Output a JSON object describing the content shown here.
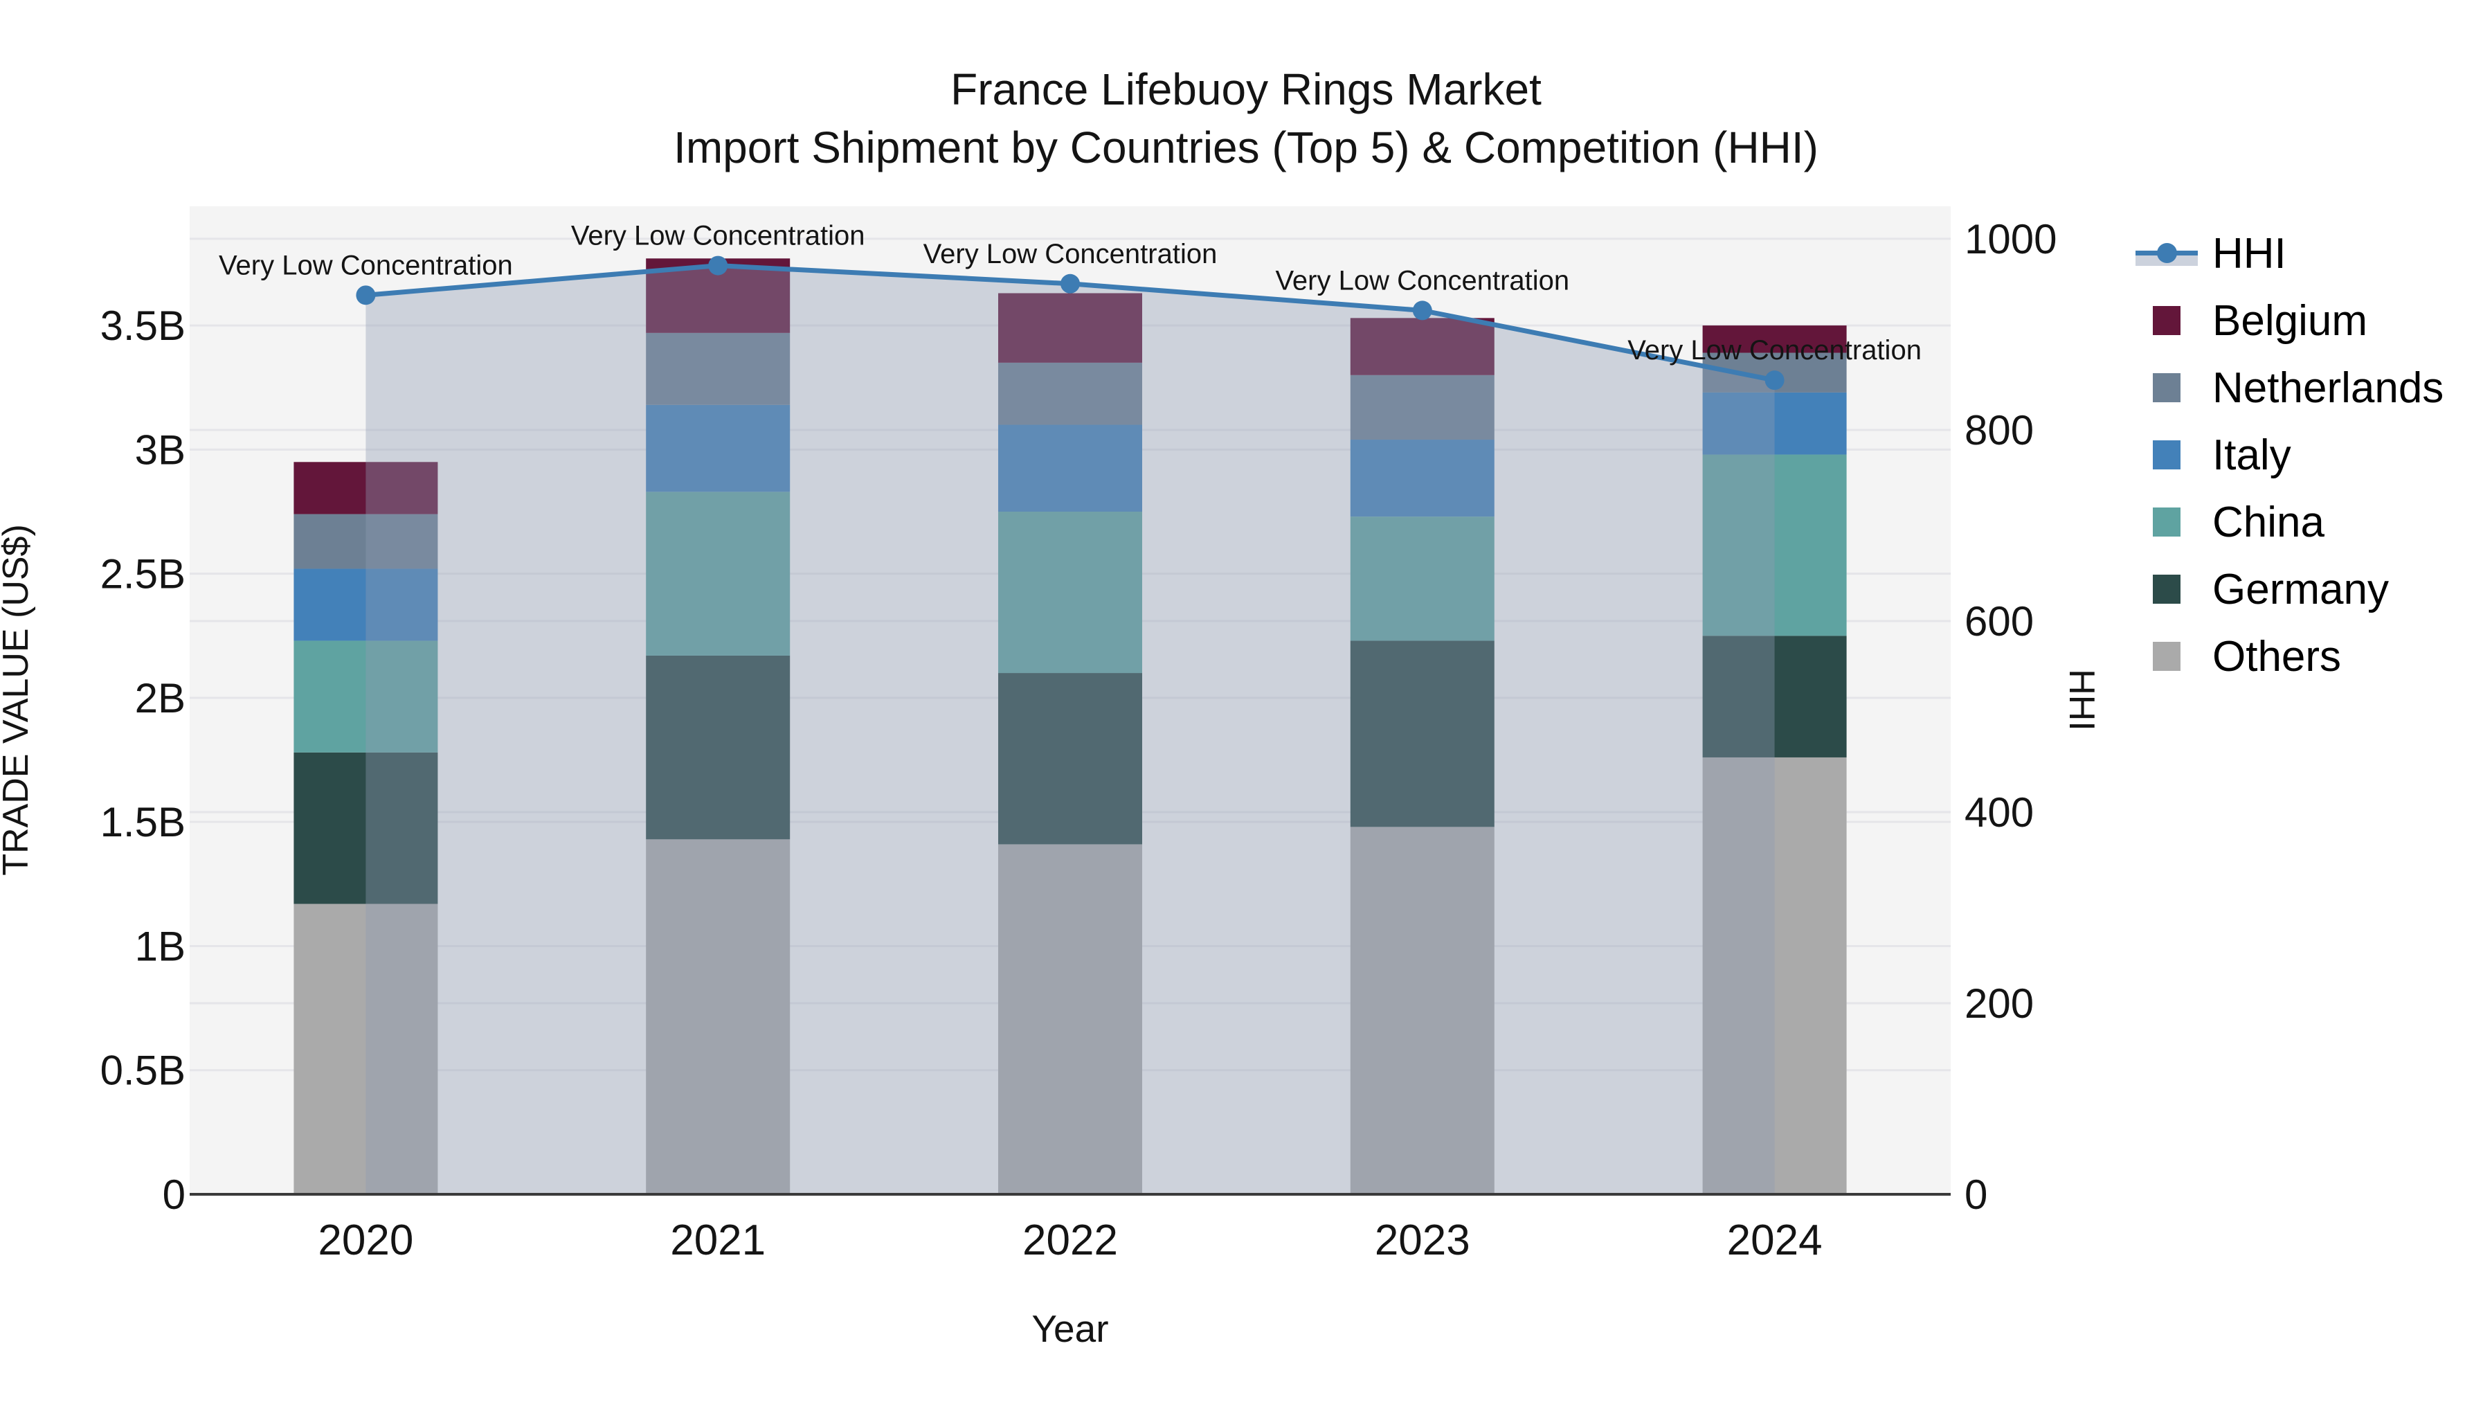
{
  "title": {
    "line1": "France Lifebuoy Rings Market",
    "line2": "Import Shipment by Countries (Top 5) & Competition (HHI)"
  },
  "axes": {
    "x": {
      "title": "Year",
      "categories": [
        "2020",
        "2021",
        "2022",
        "2023",
        "2024"
      ]
    },
    "left": {
      "title": "TRADE VALUE (US$)",
      "ticks": [
        {
          "label": "0",
          "value": 0
        },
        {
          "label": "0.5B",
          "value": 0.5
        },
        {
          "label": "1B",
          "value": 1
        },
        {
          "label": "1.5B",
          "value": 1.5
        },
        {
          "label": "2B",
          "value": 2
        },
        {
          "label": "2.5B",
          "value": 2.5
        },
        {
          "label": "3B",
          "value": 3
        },
        {
          "label": "3.5B",
          "value": 3.5
        }
      ]
    },
    "right": {
      "title": "HHI",
      "ticks": [
        {
          "label": "0",
          "value": 0
        },
        {
          "label": "200",
          "value": 200
        },
        {
          "label": "400",
          "value": 400
        },
        {
          "label": "600",
          "value": 600
        },
        {
          "label": "800",
          "value": 800
        },
        {
          "label": "1000",
          "value": 1000
        }
      ]
    }
  },
  "legend": {
    "items": [
      {
        "id": "hhi",
        "label": "HHI",
        "type": "line",
        "color": "#3d7cb3"
      },
      {
        "id": "belgium",
        "label": "Belgium",
        "type": "swatch",
        "color": "#63163a"
      },
      {
        "id": "netherlands",
        "label": "Netherlands",
        "type": "swatch",
        "color": "#6d8094"
      },
      {
        "id": "italy",
        "label": "Italy",
        "type": "swatch",
        "color": "#4381b9"
      },
      {
        "id": "china",
        "label": "China",
        "type": "swatch",
        "color": "#5fa3a1"
      },
      {
        "id": "germany",
        "label": "Germany",
        "type": "swatch",
        "color": "#2c4b49"
      },
      {
        "id": "others",
        "label": "Others",
        "type": "swatch",
        "color": "#aaaaaa"
      }
    ]
  },
  "colors": {
    "hhi_line": "#3d7cb3",
    "area_fill": "rgba(141,155,180,0.38)",
    "legend_band": "#ccd2dd",
    "plot_bg": "#f4f4f4",
    "grid": "#e5e5e9",
    "axis_line": "#3a3a3a",
    "text": "#141414"
  },
  "chart_data": {
    "type": "combo_stacked_bar_line",
    "title": "France Lifebuoy Rings Market — Import Shipment by Countries (Top 5) & Competition (HHI)",
    "xlabel": "Year",
    "ylabel_left": "TRADE VALUE (US$)",
    "ylabel_right": "HHI",
    "categories": [
      "2020",
      "2021",
      "2022",
      "2023",
      "2024"
    ],
    "bar_unit": "billion US$",
    "ylim_left": [
      0,
      3.98
    ],
    "ylim_right": [
      0,
      1034
    ],
    "grid": true,
    "legend_position": "right",
    "series": [
      {
        "name": "Others",
        "color": "#aaaaaa",
        "values": [
          1.17,
          1.43,
          1.41,
          1.48,
          1.76
        ]
      },
      {
        "name": "Germany",
        "color": "#2c4b49",
        "values": [
          0.61,
          0.74,
          0.69,
          0.75,
          0.49
        ]
      },
      {
        "name": "China",
        "color": "#5fa3a1",
        "values": [
          0.45,
          0.66,
          0.65,
          0.5,
          0.73
        ]
      },
      {
        "name": "Italy",
        "color": "#4381b9",
        "values": [
          0.29,
          0.35,
          0.35,
          0.31,
          0.25
        ]
      },
      {
        "name": "Netherlands",
        "color": "#6d8094",
        "values": [
          0.22,
          0.29,
          0.25,
          0.26,
          0.16
        ]
      },
      {
        "name": "Belgium",
        "color": "#63163a",
        "values": [
          0.21,
          0.3,
          0.28,
          0.23,
          0.11
        ]
      }
    ],
    "bar_totals": [
      2.95,
      3.77,
      3.63,
      3.53,
      3.5
    ],
    "line_series": {
      "name": "HHI",
      "axis": "right",
      "color": "#3d7cb3",
      "area_fill": "rgba(141,155,180,0.38)",
      "values": [
        941,
        972,
        953,
        925,
        852
      ]
    },
    "annotations": [
      {
        "category": "2020",
        "text": "Very Low Concentration"
      },
      {
        "category": "2021",
        "text": "Very Low Concentration"
      },
      {
        "category": "2022",
        "text": "Very Low Concentration"
      },
      {
        "category": "2023",
        "text": "Very Low Concentration"
      },
      {
        "category": "2024",
        "text": "Very Low Concentration"
      }
    ]
  }
}
